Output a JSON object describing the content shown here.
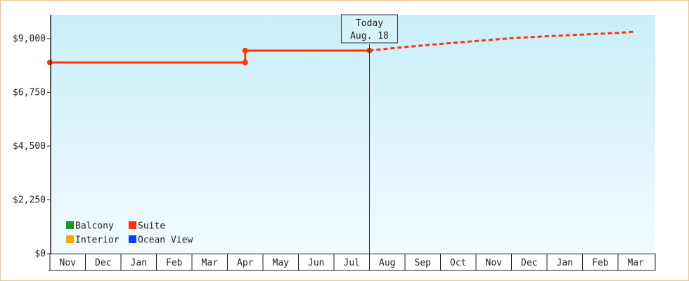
{
  "chart_data": {
    "type": "line",
    "title": "",
    "xlabel": "",
    "ylabel": "",
    "ylim": [
      0,
      10000
    ],
    "y_ticks": [
      {
        "value": 0,
        "label": "$0"
      },
      {
        "value": 2250,
        "label": "$2,250"
      },
      {
        "value": 4500,
        "label": "$4,500"
      },
      {
        "value": 6750,
        "label": "$6,750"
      },
      {
        "value": 9000,
        "label": "$9,000"
      }
    ],
    "x_ticks": [
      "Nov",
      "Dec",
      "Jan",
      "Feb",
      "Mar",
      "Apr",
      "May",
      "Jun",
      "Jul",
      "Aug",
      "Sep",
      "Oct",
      "Nov",
      "Dec",
      "Jan",
      "Feb",
      "Mar"
    ],
    "x_range_months": [
      0,
      16.5
    ],
    "today": {
      "line1": "Today",
      "line2": "Aug. 18",
      "x": 9.0
    },
    "series": [
      {
        "name": "Suite",
        "color": "#ff3300",
        "historical": [
          [
            0,
            8000
          ],
          [
            5.5,
            8000
          ],
          [
            5.5,
            8500
          ],
          [
            9.0,
            8500
          ]
        ],
        "forecast": [
          [
            9.0,
            8500
          ],
          [
            10.0,
            8650
          ],
          [
            11.0,
            8780
          ],
          [
            12.0,
            8900
          ],
          [
            13.0,
            9020
          ],
          [
            14.0,
            9100
          ],
          [
            15.0,
            9170
          ],
          [
            16.0,
            9240
          ],
          [
            16.5,
            9300
          ]
        ]
      }
    ],
    "legend": [
      {
        "name": "Balcony",
        "color": "#1a9a1a"
      },
      {
        "name": "Suite",
        "color": "#ff3300"
      },
      {
        "name": "Interior",
        "color": "#f5a800"
      },
      {
        "name": "Ocean View",
        "color": "#0a3cff"
      }
    ],
    "legend_position": "bottom-left",
    "grid": false
  }
}
